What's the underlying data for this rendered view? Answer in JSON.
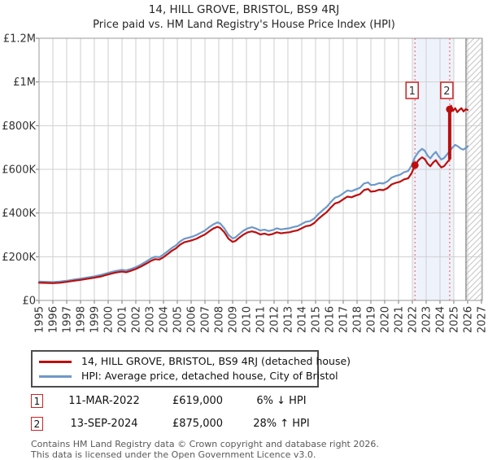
{
  "chart": {
    "title": "14, HILL GROVE, BRISTOL, BS9 4RJ",
    "subtitle": "Price paid vs. HM Land Registry's House Price Index (HPI)"
  },
  "chart_data": {
    "type": "line",
    "y_unit": "GBP thousands",
    "x_range": [
      1995,
      2027.06
    ],
    "y_range": [
      0,
      1200
    ],
    "grid": true,
    "legend_position": "bottom",
    "x_ticks": [
      1995,
      1996,
      1997,
      1998,
      1999,
      2000,
      2001,
      2002,
      2003,
      2004,
      2005,
      2006,
      2007,
      2008,
      2009,
      2010,
      2011,
      2012,
      2013,
      2014,
      2015,
      2016,
      2017,
      2018,
      2019,
      2020,
      2021,
      2022,
      2023,
      2024,
      2025,
      2026,
      2027
    ],
    "y_ticks": [
      {
        "value": 0,
        "label": "£0"
      },
      {
        "value": 200,
        "label": "£200K"
      },
      {
        "value": 400,
        "label": "£400K"
      },
      {
        "value": 600,
        "label": "£600K"
      },
      {
        "value": 800,
        "label": "£800K"
      },
      {
        "value": 1000,
        "label": "£1M"
      },
      {
        "value": 1200,
        "label": "£1.2M"
      }
    ],
    "sale_band_x": [
      2022.0,
      2025.0
    ],
    "future_hatch_x": [
      2025.88,
      2027.06
    ],
    "colors": {
      "band": "#eef2fb",
      "grid": "#cfcfcf",
      "border": "#9a9a9a",
      "hatch_line": "#c5c5c5",
      "hatch_edge": "#8a8a8a",
      "sale_line": "#f46d6d",
      "sale_box_border": "#cc2222",
      "marker": "#bb0e0e"
    },
    "series": [
      {
        "name": "14, HILL GROVE, BRISTOL, BS9 4RJ (detached house)",
        "color": "#bb0e0e",
        "points": [
          [
            1995.0,
            81
          ],
          [
            1995.5,
            80
          ],
          [
            1996.0,
            79
          ],
          [
            1996.5,
            81
          ],
          [
            1997.0,
            85
          ],
          [
            1997.5,
            90
          ],
          [
            1998.0,
            94
          ],
          [
            1998.5,
            99
          ],
          [
            1999.0,
            104
          ],
          [
            1999.5,
            110
          ],
          [
            2000.0,
            119
          ],
          [
            2000.5,
            127
          ],
          [
            2001.0,
            132
          ],
          [
            2001.3,
            129
          ],
          [
            2001.6,
            135
          ],
          [
            2002.0,
            144
          ],
          [
            2002.4,
            156
          ],
          [
            2002.8,
            170
          ],
          [
            2003.1,
            181
          ],
          [
            2003.4,
            189
          ],
          [
            2003.7,
            187
          ],
          [
            2004.0,
            198
          ],
          [
            2004.3,
            212
          ],
          [
            2004.6,
            227
          ],
          [
            2004.9,
            238
          ],
          [
            2005.2,
            255
          ],
          [
            2005.5,
            266
          ],
          [
            2005.8,
            271
          ],
          [
            2006.1,
            276
          ],
          [
            2006.4,
            283
          ],
          [
            2006.7,
            293
          ],
          [
            2007.0,
            302
          ],
          [
            2007.3,
            316
          ],
          [
            2007.6,
            329
          ],
          [
            2007.9,
            337
          ],
          [
            2008.1,
            332
          ],
          [
            2008.4,
            312
          ],
          [
            2008.7,
            283
          ],
          [
            2009.0,
            268
          ],
          [
            2009.2,
            272
          ],
          [
            2009.5,
            288
          ],
          [
            2009.8,
            302
          ],
          [
            2010.1,
            312
          ],
          [
            2010.4,
            316
          ],
          [
            2010.7,
            311
          ],
          [
            2011.0,
            302
          ],
          [
            2011.3,
            306
          ],
          [
            2011.6,
            300
          ],
          [
            2011.9,
            304
          ],
          [
            2012.2,
            312
          ],
          [
            2012.5,
            307
          ],
          [
            2012.8,
            310
          ],
          [
            2013.1,
            312
          ],
          [
            2013.4,
            317
          ],
          [
            2013.7,
            321
          ],
          [
            2014.0,
            330
          ],
          [
            2014.3,
            340
          ],
          [
            2014.6,
            343
          ],
          [
            2014.9,
            354
          ],
          [
            2015.2,
            373
          ],
          [
            2015.5,
            389
          ],
          [
            2015.8,
            404
          ],
          [
            2016.1,
            425
          ],
          [
            2016.4,
            444
          ],
          [
            2016.7,
            450
          ],
          [
            2017.0,
            463
          ],
          [
            2017.3,
            475
          ],
          [
            2017.6,
            472
          ],
          [
            2017.9,
            480
          ],
          [
            2018.2,
            486
          ],
          [
            2018.5,
            505
          ],
          [
            2018.8,
            510
          ],
          [
            2019.0,
            498
          ],
          [
            2019.3,
            500
          ],
          [
            2019.6,
            507
          ],
          [
            2019.9,
            505
          ],
          [
            2020.2,
            514
          ],
          [
            2020.5,
            531
          ],
          [
            2020.8,
            538
          ],
          [
            2021.1,
            543
          ],
          [
            2021.4,
            554
          ],
          [
            2021.7,
            559
          ],
          [
            2021.95,
            583
          ],
          [
            2022.19,
            619
          ],
          [
            2022.45,
            642
          ],
          [
            2022.7,
            655
          ],
          [
            2022.9,
            647
          ],
          [
            2023.1,
            626
          ],
          [
            2023.3,
            614
          ],
          [
            2023.5,
            631
          ],
          [
            2023.7,
            642
          ],
          [
            2023.9,
            623
          ],
          [
            2024.1,
            609
          ],
          [
            2024.3,
            615
          ],
          [
            2024.5,
            631
          ],
          [
            2024.7,
            646
          ],
          [
            2024.7,
            875
          ],
          [
            2024.8,
            891
          ],
          [
            2024.95,
            868
          ],
          [
            2025.1,
            880
          ],
          [
            2025.25,
            862
          ],
          [
            2025.4,
            872
          ],
          [
            2025.55,
            880
          ],
          [
            2025.7,
            865
          ],
          [
            2025.85,
            875
          ],
          [
            2026.0,
            872
          ]
        ]
      },
      {
        "name": "HPI: Average price, detached house, City of Bristol",
        "color": "#6e99c7",
        "points": [
          [
            1995.0,
            86
          ],
          [
            1995.5,
            85
          ],
          [
            1996.0,
            84
          ],
          [
            1996.5,
            86
          ],
          [
            1997.0,
            90
          ],
          [
            1997.5,
            95
          ],
          [
            1998.0,
            100
          ],
          [
            1998.5,
            105
          ],
          [
            1999.0,
            110
          ],
          [
            1999.5,
            117
          ],
          [
            2000.0,
            126
          ],
          [
            2000.5,
            134
          ],
          [
            2001.0,
            140
          ],
          [
            2001.3,
            137
          ],
          [
            2001.6,
            143
          ],
          [
            2002.0,
            152
          ],
          [
            2002.4,
            165
          ],
          [
            2002.8,
            180
          ],
          [
            2003.1,
            192
          ],
          [
            2003.4,
            200
          ],
          [
            2003.7,
            198
          ],
          [
            2004.0,
            210
          ],
          [
            2004.3,
            225
          ],
          [
            2004.6,
            240
          ],
          [
            2004.9,
            252
          ],
          [
            2005.2,
            270
          ],
          [
            2005.5,
            282
          ],
          [
            2005.8,
            287
          ],
          [
            2006.1,
            292
          ],
          [
            2006.4,
            300
          ],
          [
            2006.7,
            310
          ],
          [
            2007.0,
            320
          ],
          [
            2007.3,
            335
          ],
          [
            2007.6,
            348
          ],
          [
            2007.9,
            357
          ],
          [
            2008.1,
            352
          ],
          [
            2008.4,
            330
          ],
          [
            2008.7,
            300
          ],
          [
            2009.0,
            284
          ],
          [
            2009.2,
            288
          ],
          [
            2009.5,
            305
          ],
          [
            2009.8,
            320
          ],
          [
            2010.1,
            330
          ],
          [
            2010.4,
            335
          ],
          [
            2010.7,
            329
          ],
          [
            2011.0,
            320
          ],
          [
            2011.3,
            324
          ],
          [
            2011.6,
            318
          ],
          [
            2011.9,
            322
          ],
          [
            2012.2,
            330
          ],
          [
            2012.5,
            325
          ],
          [
            2012.8,
            328
          ],
          [
            2013.1,
            330
          ],
          [
            2013.4,
            336
          ],
          [
            2013.7,
            340
          ],
          [
            2014.0,
            350
          ],
          [
            2014.3,
            360
          ],
          [
            2014.6,
            363
          ],
          [
            2014.9,
            375
          ],
          [
            2015.2,
            395
          ],
          [
            2015.5,
            412
          ],
          [
            2015.8,
            428
          ],
          [
            2016.1,
            450
          ],
          [
            2016.4,
            470
          ],
          [
            2016.7,
            477
          ],
          [
            2017.0,
            490
          ],
          [
            2017.3,
            503
          ],
          [
            2017.6,
            500
          ],
          [
            2017.9,
            508
          ],
          [
            2018.2,
            515
          ],
          [
            2018.5,
            535
          ],
          [
            2018.8,
            540
          ],
          [
            2019.0,
            528
          ],
          [
            2019.3,
            530
          ],
          [
            2019.6,
            537
          ],
          [
            2019.9,
            535
          ],
          [
            2020.2,
            545
          ],
          [
            2020.5,
            562
          ],
          [
            2020.8,
            570
          ],
          [
            2021.1,
            575
          ],
          [
            2021.4,
            587
          ],
          [
            2021.7,
            592
          ],
          [
            2021.95,
            618
          ],
          [
            2022.19,
            656
          ],
          [
            2022.45,
            680
          ],
          [
            2022.7,
            694
          ],
          [
            2022.9,
            685
          ],
          [
            2023.1,
            663
          ],
          [
            2023.3,
            650
          ],
          [
            2023.5,
            668
          ],
          [
            2023.7,
            680
          ],
          [
            2023.9,
            660
          ],
          [
            2024.1,
            645
          ],
          [
            2024.3,
            652
          ],
          [
            2024.5,
            668
          ],
          [
            2024.7,
            684
          ],
          [
            2024.9,
            700
          ],
          [
            2025.1,
            712
          ],
          [
            2025.3,
            705
          ],
          [
            2025.5,
            695
          ],
          [
            2025.7,
            690
          ],
          [
            2025.9,
            700
          ],
          [
            2026.0,
            706
          ]
        ]
      }
    ],
    "sales": [
      {
        "label": "1",
        "x": 2022.19,
        "y": 619,
        "date": "11-MAR-2022",
        "price": "£619,000",
        "vs_hpi": "6% ↓ HPI"
      },
      {
        "label": "2",
        "x": 2024.7,
        "y": 875,
        "jump_from": 646,
        "date": "13-SEP-2024",
        "price": "£875,000",
        "vs_hpi": "28% ↑ HPI"
      }
    ]
  },
  "legend": {
    "items": [
      {
        "label": "14, HILL GROVE, BRISTOL, BS9 4RJ (detached house)",
        "color": "#bb0e0e"
      },
      {
        "label": "HPI: Average price, detached house, City of Bristol",
        "color": "#6e99c7"
      }
    ]
  },
  "footer": {
    "line1": "Contains HM Land Registry data © Crown copyright and database right 2026.",
    "line2": "This data is licensed under the Open Government Licence v3.0."
  }
}
